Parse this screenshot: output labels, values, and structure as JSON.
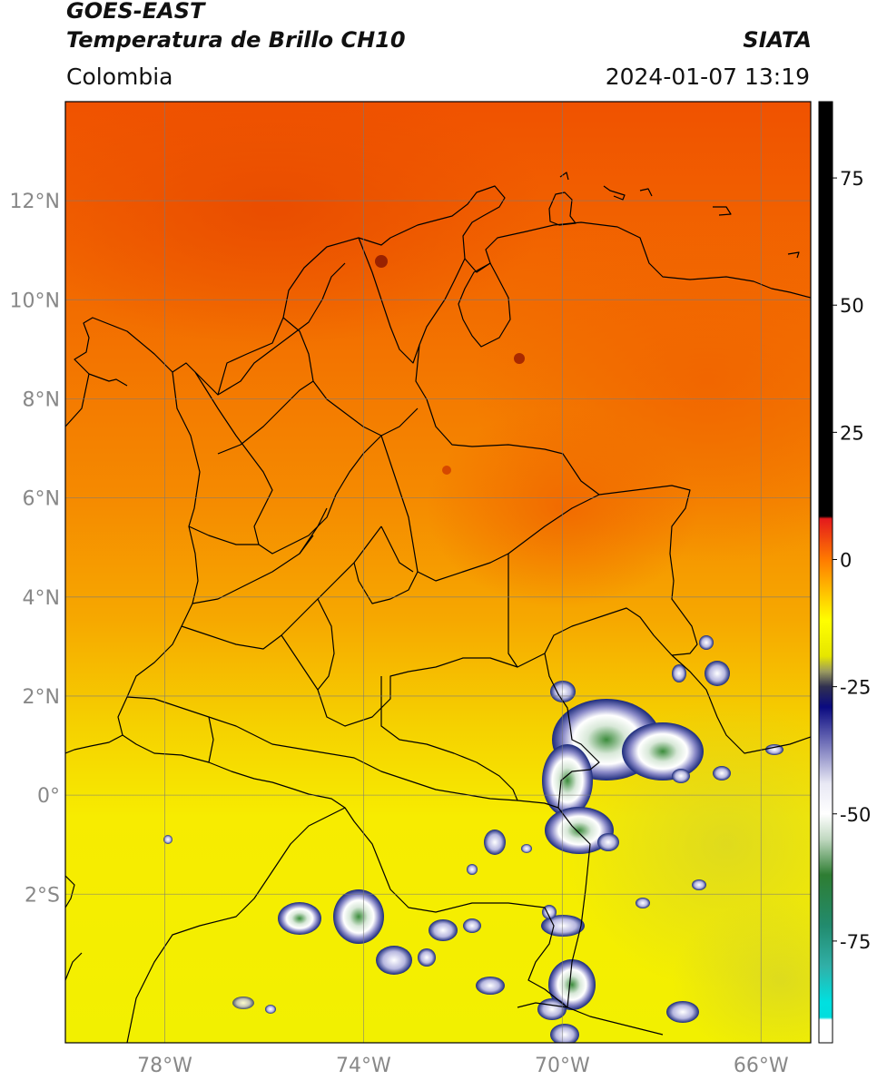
{
  "header": {
    "title_line1": "GOES-EAST",
    "title_line2": "Temperatura de Brillo CH10",
    "brand": "SIATA",
    "region": "Colombia",
    "datetime": "2024-01-07 13:19"
  },
  "map": {
    "lon_range": [
      -80,
      -65
    ],
    "lat_range": [
      -5,
      14
    ],
    "lat_ticks": [
      {
        "value": 12,
        "label": "12°N"
      },
      {
        "value": 10,
        "label": "10°N"
      },
      {
        "value": 8,
        "label": "8°N"
      },
      {
        "value": 6,
        "label": "6°N"
      },
      {
        "value": 4,
        "label": "4°N"
      },
      {
        "value": 2,
        "label": "2°N"
      },
      {
        "value": 0,
        "label": "0°"
      },
      {
        "value": -2,
        "label": "2°S"
      }
    ],
    "lon_ticks": [
      {
        "value": -78,
        "label": "78°W"
      },
      {
        "value": -74,
        "label": "74°W"
      },
      {
        "value": -70,
        "label": "70°W"
      },
      {
        "value": -66,
        "label": "66°W"
      }
    ],
    "grid": true,
    "colors": {
      "warm_north": "#f05a00",
      "mid": "#f7a500",
      "cool_south": "#f4f000",
      "cloud_white": "#ffffff",
      "cloud_navy": "#1b2a7a",
      "cloud_green": "#3c8c3c",
      "border": "#000000"
    }
  },
  "colorbar": {
    "range": [
      -95,
      90
    ],
    "ticks": [
      {
        "value": 75,
        "label": "75"
      },
      {
        "value": 50,
        "label": "50"
      },
      {
        "value": 25,
        "label": "25"
      },
      {
        "value": 0,
        "label": "0"
      },
      {
        "value": -25,
        "label": "-25"
      },
      {
        "value": -50,
        "label": "-50"
      },
      {
        "value": -75,
        "label": "-75"
      }
    ],
    "stops": [
      {
        "value": 90,
        "color": "#000000"
      },
      {
        "value": 8.5,
        "color": "#000000"
      },
      {
        "value": 8,
        "color": "#e41a1c"
      },
      {
        "value": 0,
        "color": "#ff7a00"
      },
      {
        "value": -12,
        "color": "#ffff00"
      },
      {
        "value": -19,
        "color": "#e6e600"
      },
      {
        "value": -22,
        "color": "#9a9a60"
      },
      {
        "value": -25,
        "color": "#303050"
      },
      {
        "value": -29,
        "color": "#0a0a80"
      },
      {
        "value": -36,
        "color": "#7070b8"
      },
      {
        "value": -44,
        "color": "#e8e8f4"
      },
      {
        "value": -50,
        "color": "#ffffff"
      },
      {
        "value": -55,
        "color": "#c0d8c0"
      },
      {
        "value": -62,
        "color": "#2e7d32"
      },
      {
        "value": -72,
        "color": "#228b6e"
      },
      {
        "value": -80,
        "color": "#30b0a8"
      },
      {
        "value": -87,
        "color": "#00e0e0"
      },
      {
        "value": -90,
        "color": "#00dede"
      },
      {
        "value": -90.5,
        "color": "#ffffff"
      },
      {
        "value": -95,
        "color": "#ffffff"
      }
    ]
  }
}
